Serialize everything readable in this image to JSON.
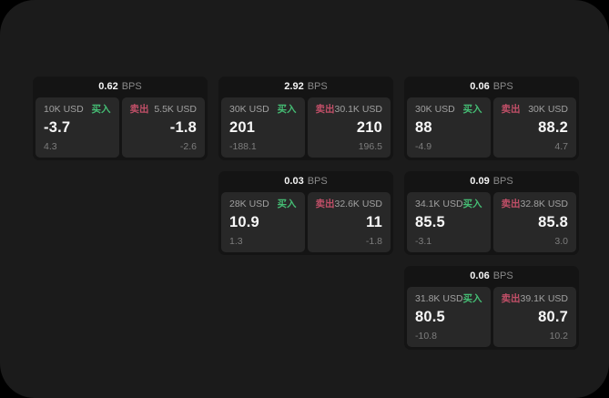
{
  "page": {
    "outer_background": "#000000",
    "panel_background": "#1b1b1b",
    "card_background": "#141414",
    "tile_background": "#282828"
  },
  "labels": {
    "bps_unit": "BPS",
    "buy": "买入",
    "sell": "卖出"
  },
  "colors": {
    "buy_green": "#45bd74",
    "sell_red": "#c14f68",
    "value_white": "#f7f7f7",
    "muted_gray": "#a0a0a0",
    "sub_gray": "#7d7d7d"
  },
  "cards": [
    {
      "bps": "0.62",
      "buy": {
        "size": "10K USD",
        "value": "-3.7",
        "sub": "4.3"
      },
      "sell": {
        "size": "5.5K USD",
        "value": "-1.8",
        "sub": "-2.6"
      }
    },
    {
      "bps": "2.92",
      "buy": {
        "size": "30K USD",
        "value": "201",
        "sub": "-188.1"
      },
      "sell": {
        "size": "30.1K USD",
        "value": "210",
        "sub": "196.5"
      }
    },
    {
      "bps": "0.06",
      "buy": {
        "size": "30K USD",
        "value": "88",
        "sub": "-4.9"
      },
      "sell": {
        "size": "30K USD",
        "value": "88.2",
        "sub": "4.7"
      }
    },
    {
      "bps": "0.03",
      "buy": {
        "size": "28K USD",
        "value": "10.9",
        "sub": "1.3"
      },
      "sell": {
        "size": "32.6K USD",
        "value": "11",
        "sub": "-1.8"
      }
    },
    {
      "bps": "0.09",
      "buy": {
        "size": "34.1K USD",
        "value": "85.5",
        "sub": "-3.1"
      },
      "sell": {
        "size": "32.8K USD",
        "value": "85.8",
        "sub": "3.0"
      }
    },
    {
      "bps": "0.06",
      "buy": {
        "size": "31.8K USD",
        "value": "80.5",
        "sub": "-10.8"
      },
      "sell": {
        "size": "39.1K USD",
        "value": "80.7",
        "sub": "10.2"
      }
    }
  ]
}
